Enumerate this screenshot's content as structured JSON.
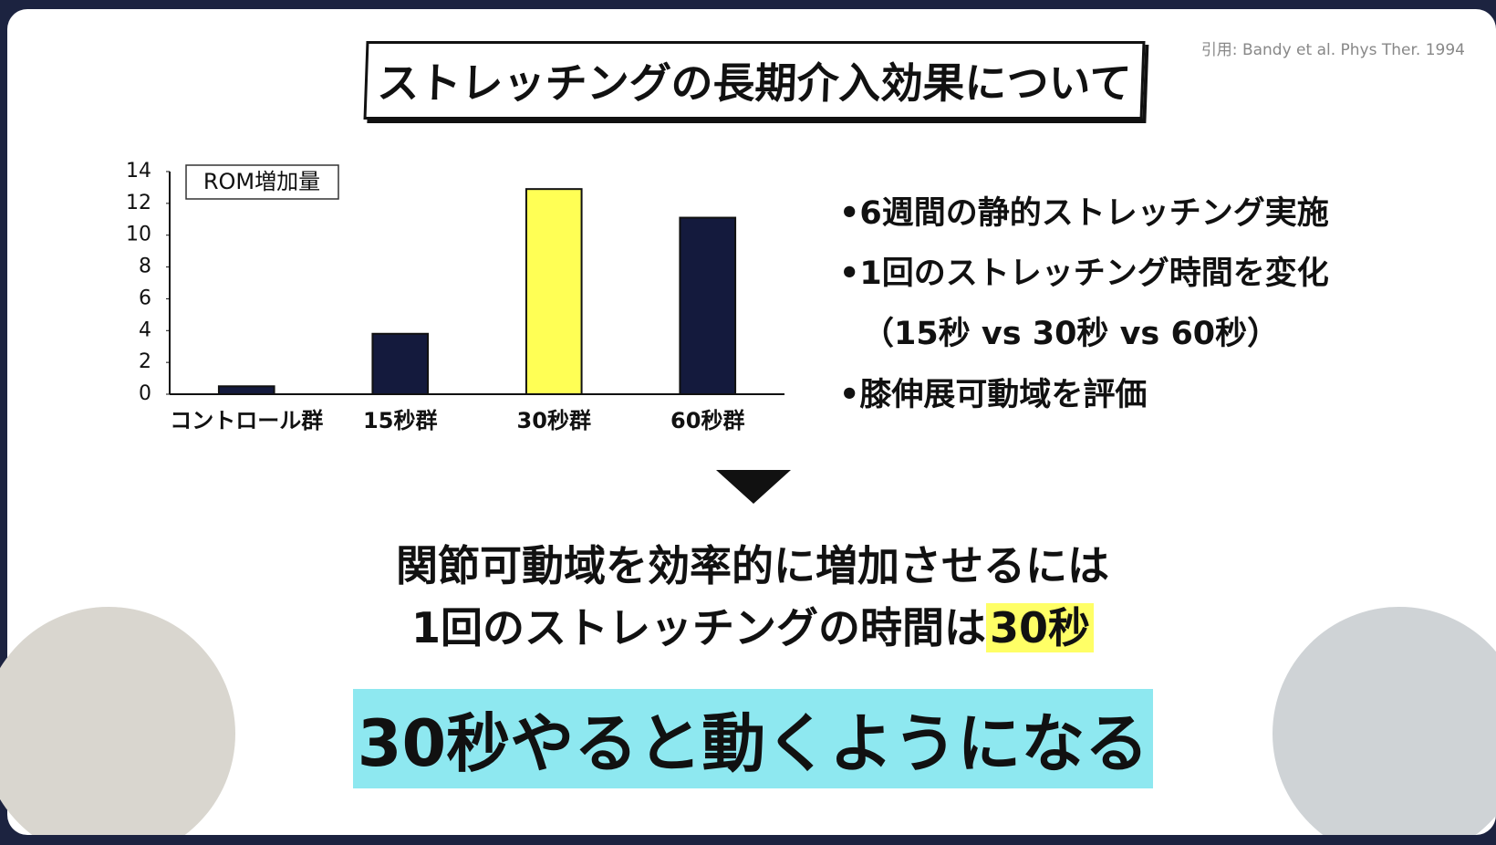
{
  "citation": "引用: Bandy et al. Phys Ther. 1994",
  "chart_data": {
    "type": "bar",
    "title": "ストレッチングの長期介入効果について",
    "ylabel": "ROM増加量",
    "categories": [
      "コントロール群",
      "15秒群",
      "30秒群",
      "60秒群"
    ],
    "values": [
      0.5,
      3.8,
      12.9,
      11.1
    ],
    "colors": [
      "#141a3d",
      "#141a3d",
      "#ffff55",
      "#141a3d"
    ],
    "ylim": [
      0,
      14
    ],
    "yticks": [
      0,
      2,
      4,
      6,
      8,
      10,
      12,
      14
    ],
    "grid": false
  },
  "bullets": [
    "•6週間の静的ストレッチング実施",
    "•1回のストレッチング時間を変化",
    "（15秒 vs 30秒 vs 60秒）",
    "•膝伸展可動域を評価"
  ],
  "conclusion": {
    "line1": "関節可動域を効率的に増加させるには",
    "line2": "1回のストレッチングの時間は",
    "highlight": "30秒"
  },
  "caption": "30秒やると動くようになる"
}
